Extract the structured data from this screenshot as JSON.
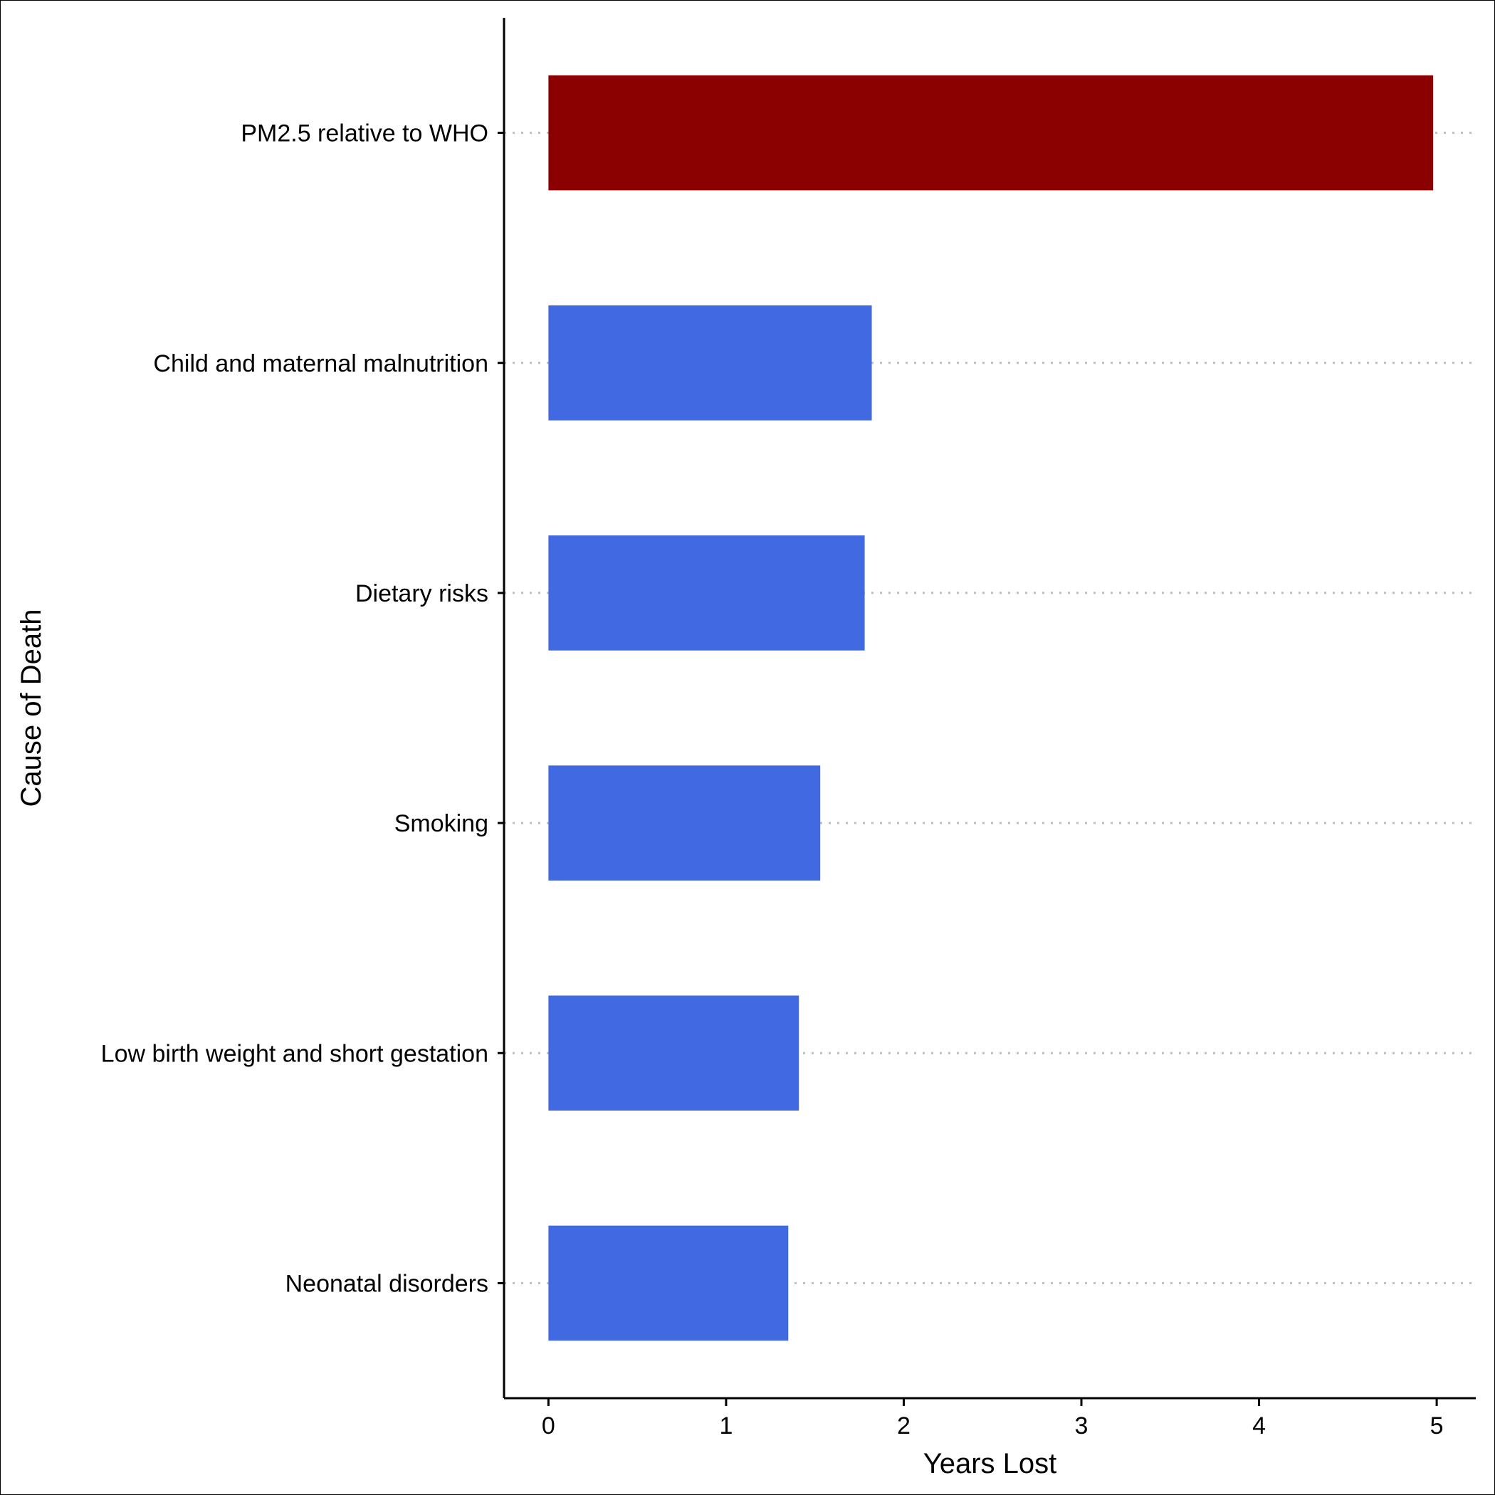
{
  "chart_data": {
    "type": "bar",
    "orientation": "horizontal",
    "categories": [
      "PM2.5 relative to WHO",
      "Child and maternal malnutrition",
      "Dietary risks",
      "Smoking",
      "Low birth weight and short gestation",
      "Neonatal disorders"
    ],
    "values": [
      4.98,
      1.82,
      1.78,
      1.53,
      1.41,
      1.35
    ],
    "bar_colors": [
      "#8B0000",
      "#4169E1",
      "#4169E1",
      "#4169E1",
      "#4169E1",
      "#4169E1"
    ],
    "xlabel": "Years Lost",
    "ylabel": "Cause of Death",
    "xlim": [
      -0.25,
      5.22
    ],
    "xticks": [
      0,
      1,
      2,
      3,
      4,
      5
    ],
    "xtick_labels": [
      "0",
      "1",
      "2",
      "3",
      "4",
      "5"
    ],
    "grid": "horizontal dotted",
    "grid_color": "#BEBEBE",
    "legend": "none"
  }
}
